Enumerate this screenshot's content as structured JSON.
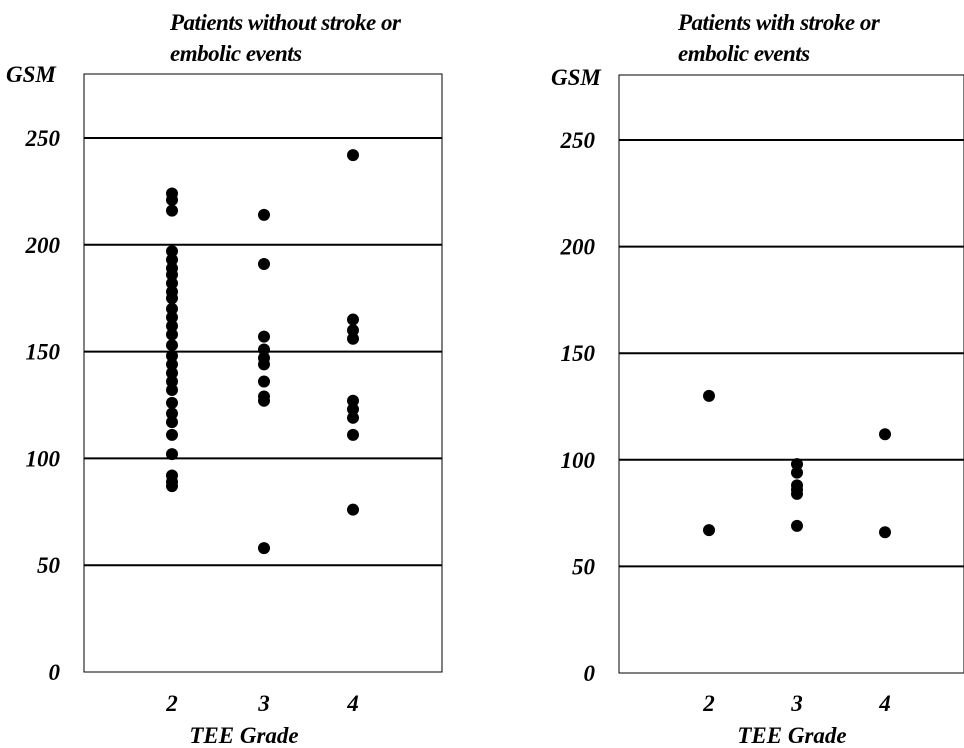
{
  "chart_data": [
    {
      "type": "scatter",
      "title_lines": [
        "Patients without stroke or",
        "embolic events"
      ],
      "ylabel": "GSM",
      "xlabel": "TEE Grade",
      "categories": [
        "2",
        "3",
        "4"
      ],
      "yticks": [
        "0",
        "50",
        "100",
        "150",
        "200",
        "250"
      ],
      "ylim": [
        0,
        250
      ],
      "grid": true,
      "series": [
        {
          "x": "2",
          "values": [
            224,
            221,
            216,
            197,
            193,
            189,
            186,
            182,
            178,
            175,
            170,
            166,
            162,
            158,
            153,
            148,
            144,
            140,
            136,
            132,
            126,
            121,
            117,
            111,
            102,
            92,
            89,
            87
          ]
        },
        {
          "x": "3",
          "values": [
            214,
            191,
            157,
            151,
            147,
            144,
            136,
            129,
            127,
            58
          ]
        },
        {
          "x": "4",
          "values": [
            242,
            165,
            160,
            156,
            127,
            123,
            119,
            111,
            76
          ]
        }
      ]
    },
    {
      "type": "scatter",
      "title_lines": [
        "Patients with stroke or",
        "embolic events"
      ],
      "ylabel": "GSM",
      "xlabel": "TEE Grade",
      "categories": [
        "2",
        "3",
        "4"
      ],
      "yticks": [
        "0",
        "50",
        "100",
        "150",
        "200",
        "250"
      ],
      "ylim": [
        0,
        250
      ],
      "grid": true,
      "series": [
        {
          "x": "2",
          "values": [
            130,
            67
          ]
        },
        {
          "x": "3",
          "values": [
            98,
            94,
            88,
            86,
            84,
            69
          ]
        },
        {
          "x": "4",
          "values": [
            112,
            66
          ]
        }
      ]
    }
  ]
}
